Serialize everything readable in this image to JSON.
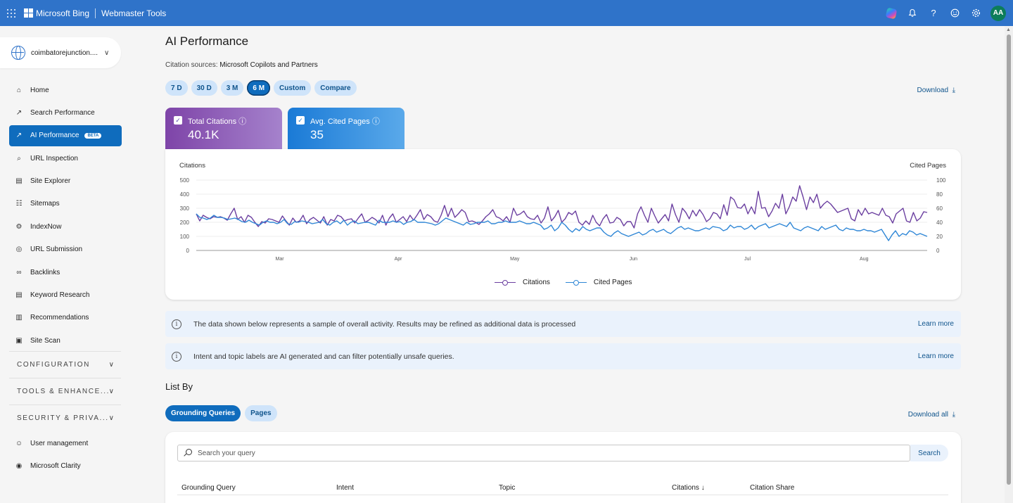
{
  "header": {
    "brand": "Microsoft Bing",
    "product": "Webmaster Tools",
    "avatar_initials": "AA",
    "icons": [
      "copilot-icon",
      "bell-icon",
      "help-icon",
      "feedback-icon",
      "gear-icon"
    ]
  },
  "sidebar": {
    "site": "coimbatorejunction....",
    "items": [
      {
        "label": "Home",
        "icon": "home-icon"
      },
      {
        "label": "Search Performance",
        "icon": "trend-icon"
      },
      {
        "label": "AI Performance",
        "icon": "spark-icon",
        "badge": "BETA",
        "active": true
      },
      {
        "label": "URL Inspection",
        "icon": "search-icon"
      },
      {
        "label": "Site Explorer",
        "icon": "document-icon"
      },
      {
        "label": "Sitemaps",
        "icon": "sitemap-icon"
      },
      {
        "label": "IndexNow",
        "icon": "gear-icon"
      },
      {
        "label": "URL Submission",
        "icon": "globe-icon"
      },
      {
        "label": "Backlinks",
        "icon": "link-icon"
      },
      {
        "label": "Keyword Research",
        "icon": "document-icon"
      },
      {
        "label": "Recommendations",
        "icon": "clipboard-icon"
      },
      {
        "label": "Site Scan",
        "icon": "scan-icon"
      }
    ],
    "groups": [
      "CONFIGURATION",
      "TOOLS & ENHANCE...",
      "SECURITY & PRIVA..."
    ],
    "bottom_items": [
      {
        "label": "User management",
        "icon": "user-icon"
      },
      {
        "label": "Microsoft Clarity",
        "icon": "clarity-icon"
      }
    ]
  },
  "main": {
    "title": "AI Performance",
    "citation_label": "Citation sources:",
    "citation_value": "Microsoft Copilots and Partners",
    "ranges": [
      "7 D",
      "30 D",
      "3 M",
      "6 M",
      "Custom",
      "Compare"
    ],
    "active_range": "6 M",
    "download_label": "Download",
    "metric_tabs": [
      {
        "label": "Total Citations",
        "value": "40.1K",
        "color": "#7e44a8"
      },
      {
        "label": "Avg. Cited Pages",
        "value": "35",
        "color": "#1a7ad6"
      }
    ],
    "info_banners": [
      {
        "text": "The data shown below represents a sample of overall activity. Results may be refined as additional data is processed",
        "link": "Learn more"
      },
      {
        "text": "Intent and topic labels are AI generated and can filter potentially unsafe queries.",
        "link": "Learn more"
      }
    ],
    "list_by_title": "List By",
    "list_tabs": [
      "Grounding Queries",
      "Pages"
    ],
    "download_all_label": "Download all",
    "search_placeholder": "Search your query",
    "search_button": "Search",
    "columns": [
      "Grounding Query",
      "Intent",
      "Topic",
      "Citations",
      "Citation Share"
    ]
  },
  "chart_data": {
    "type": "line",
    "ylabel_left": "Citations",
    "ylabel_right": "Cited Pages",
    "ylim_left": [
      0,
      500
    ],
    "ylim_right": [
      0,
      100
    ],
    "yticks_left": [
      0,
      100,
      200,
      300,
      400,
      500
    ],
    "yticks_right": [
      0,
      20,
      40,
      60,
      80,
      100
    ],
    "x_tick_labels": [
      "Mar",
      "Apr",
      "May",
      "Jun",
      "Jul",
      "Aug"
    ],
    "legend_position": "bottom",
    "series": [
      {
        "name": "Citations",
        "axis": "left",
        "color": "#6b3fa0",
        "values": [
          260,
          210,
          250,
          235,
          225,
          240,
          235,
          240,
          230,
          215,
          260,
          300,
          220,
          240,
          200,
          250,
          235,
          200,
          170,
          205,
          195,
          225,
          220,
          210,
          200,
          245,
          210,
          180,
          230,
          200,
          210,
          250,
          190,
          220,
          235,
          215,
          195,
          240,
          180,
          220,
          210,
          250,
          240,
          210,
          220,
          225,
          195,
          230,
          260,
          200,
          215,
          235,
          220,
          195,
          250,
          180,
          230,
          260,
          200,
          220,
          240,
          205,
          250,
          215,
          250,
          290,
          220,
          255,
          240,
          210,
          200,
          250,
          320,
          240,
          300,
          235,
          260,
          290,
          270,
          205,
          210,
          200,
          185,
          210,
          240,
          260,
          290,
          240,
          230,
          210,
          240,
          200,
          300,
          250,
          260,
          280,
          240,
          225,
          220,
          250,
          195,
          230,
          310,
          210,
          240,
          285,
          200,
          225,
          270,
          255,
          280,
          200,
          180,
          210,
          185,
          250,
          200,
          175,
          225,
          255,
          195,
          200,
          235,
          220,
          175,
          205,
          205,
          160,
          260,
          310,
          250,
          200,
          300,
          245,
          195,
          225,
          255,
          210,
          330,
          255,
          200,
          300,
          270,
          225,
          285,
          245,
          290,
          255,
          205,
          225,
          270,
          260,
          225,
          325,
          250,
          380,
          360,
          305,
          300,
          330,
          260,
          310,
          260,
          420,
          300,
          305,
          240,
          280,
          335,
          300,
          400,
          260,
          310,
          380,
          350,
          460,
          380,
          290,
          380,
          340,
          400,
          300,
          330,
          350,
          330,
          300,
          270,
          280,
          290,
          300,
          225,
          210,
          290,
          250,
          300,
          260,
          270,
          260,
          250,
          300,
          250,
          240,
          195,
          260,
          280,
          300,
          210,
          200,
          270,
          210,
          230,
          275,
          270
        ]
      },
      {
        "name": "Cited Pages",
        "axis": "right",
        "color": "#2e86d6",
        "values": [
          52,
          47,
          46,
          44,
          46,
          50,
          47,
          47,
          46,
          44,
          45,
          46,
          44,
          41,
          40,
          43,
          40,
          38,
          36,
          40,
          42,
          40,
          40,
          38,
          40,
          44,
          38,
          37,
          41,
          40,
          42,
          41,
          40,
          38,
          39,
          40,
          44,
          38,
          36,
          40,
          42,
          38,
          43,
          36,
          40,
          42,
          38,
          39,
          40,
          40,
          38,
          36,
          43,
          40,
          40,
          40,
          42,
          40,
          41,
          37,
          40,
          41,
          44,
          40,
          40,
          40,
          39,
          38,
          36,
          38,
          42,
          46,
          44,
          42,
          40,
          38,
          36,
          40,
          37,
          38,
          40,
          40,
          40,
          42,
          38,
          38,
          40,
          40,
          42,
          40,
          40,
          40,
          42,
          40,
          38,
          38,
          40,
          38,
          36,
          30,
          32,
          36,
          28,
          32,
          40,
          36,
          30,
          26,
          31,
          28,
          34,
          30,
          28,
          30,
          32,
          32,
          26,
          22,
          20,
          25,
          28,
          24,
          22,
          20,
          22,
          24,
          26,
          22,
          24,
          28,
          30,
          26,
          28,
          30,
          26,
          24,
          28,
          32,
          34,
          30,
          32,
          30,
          28,
          28,
          30,
          32,
          30,
          34,
          33,
          32,
          28,
          30,
          36,
          32,
          34,
          34,
          30,
          32,
          36,
          30,
          34,
          36,
          38,
          32,
          34,
          36,
          38,
          36,
          34,
          40,
          32,
          30,
          28,
          32,
          34,
          32,
          30,
          28,
          34,
          30,
          32,
          34,
          36,
          30,
          28,
          32,
          30,
          30,
          28,
          28,
          30,
          28,
          28,
          26,
          28,
          30,
          22,
          14,
          22,
          28,
          20,
          24,
          22,
          28,
          26,
          22,
          24,
          22,
          20
        ]
      }
    ]
  }
}
